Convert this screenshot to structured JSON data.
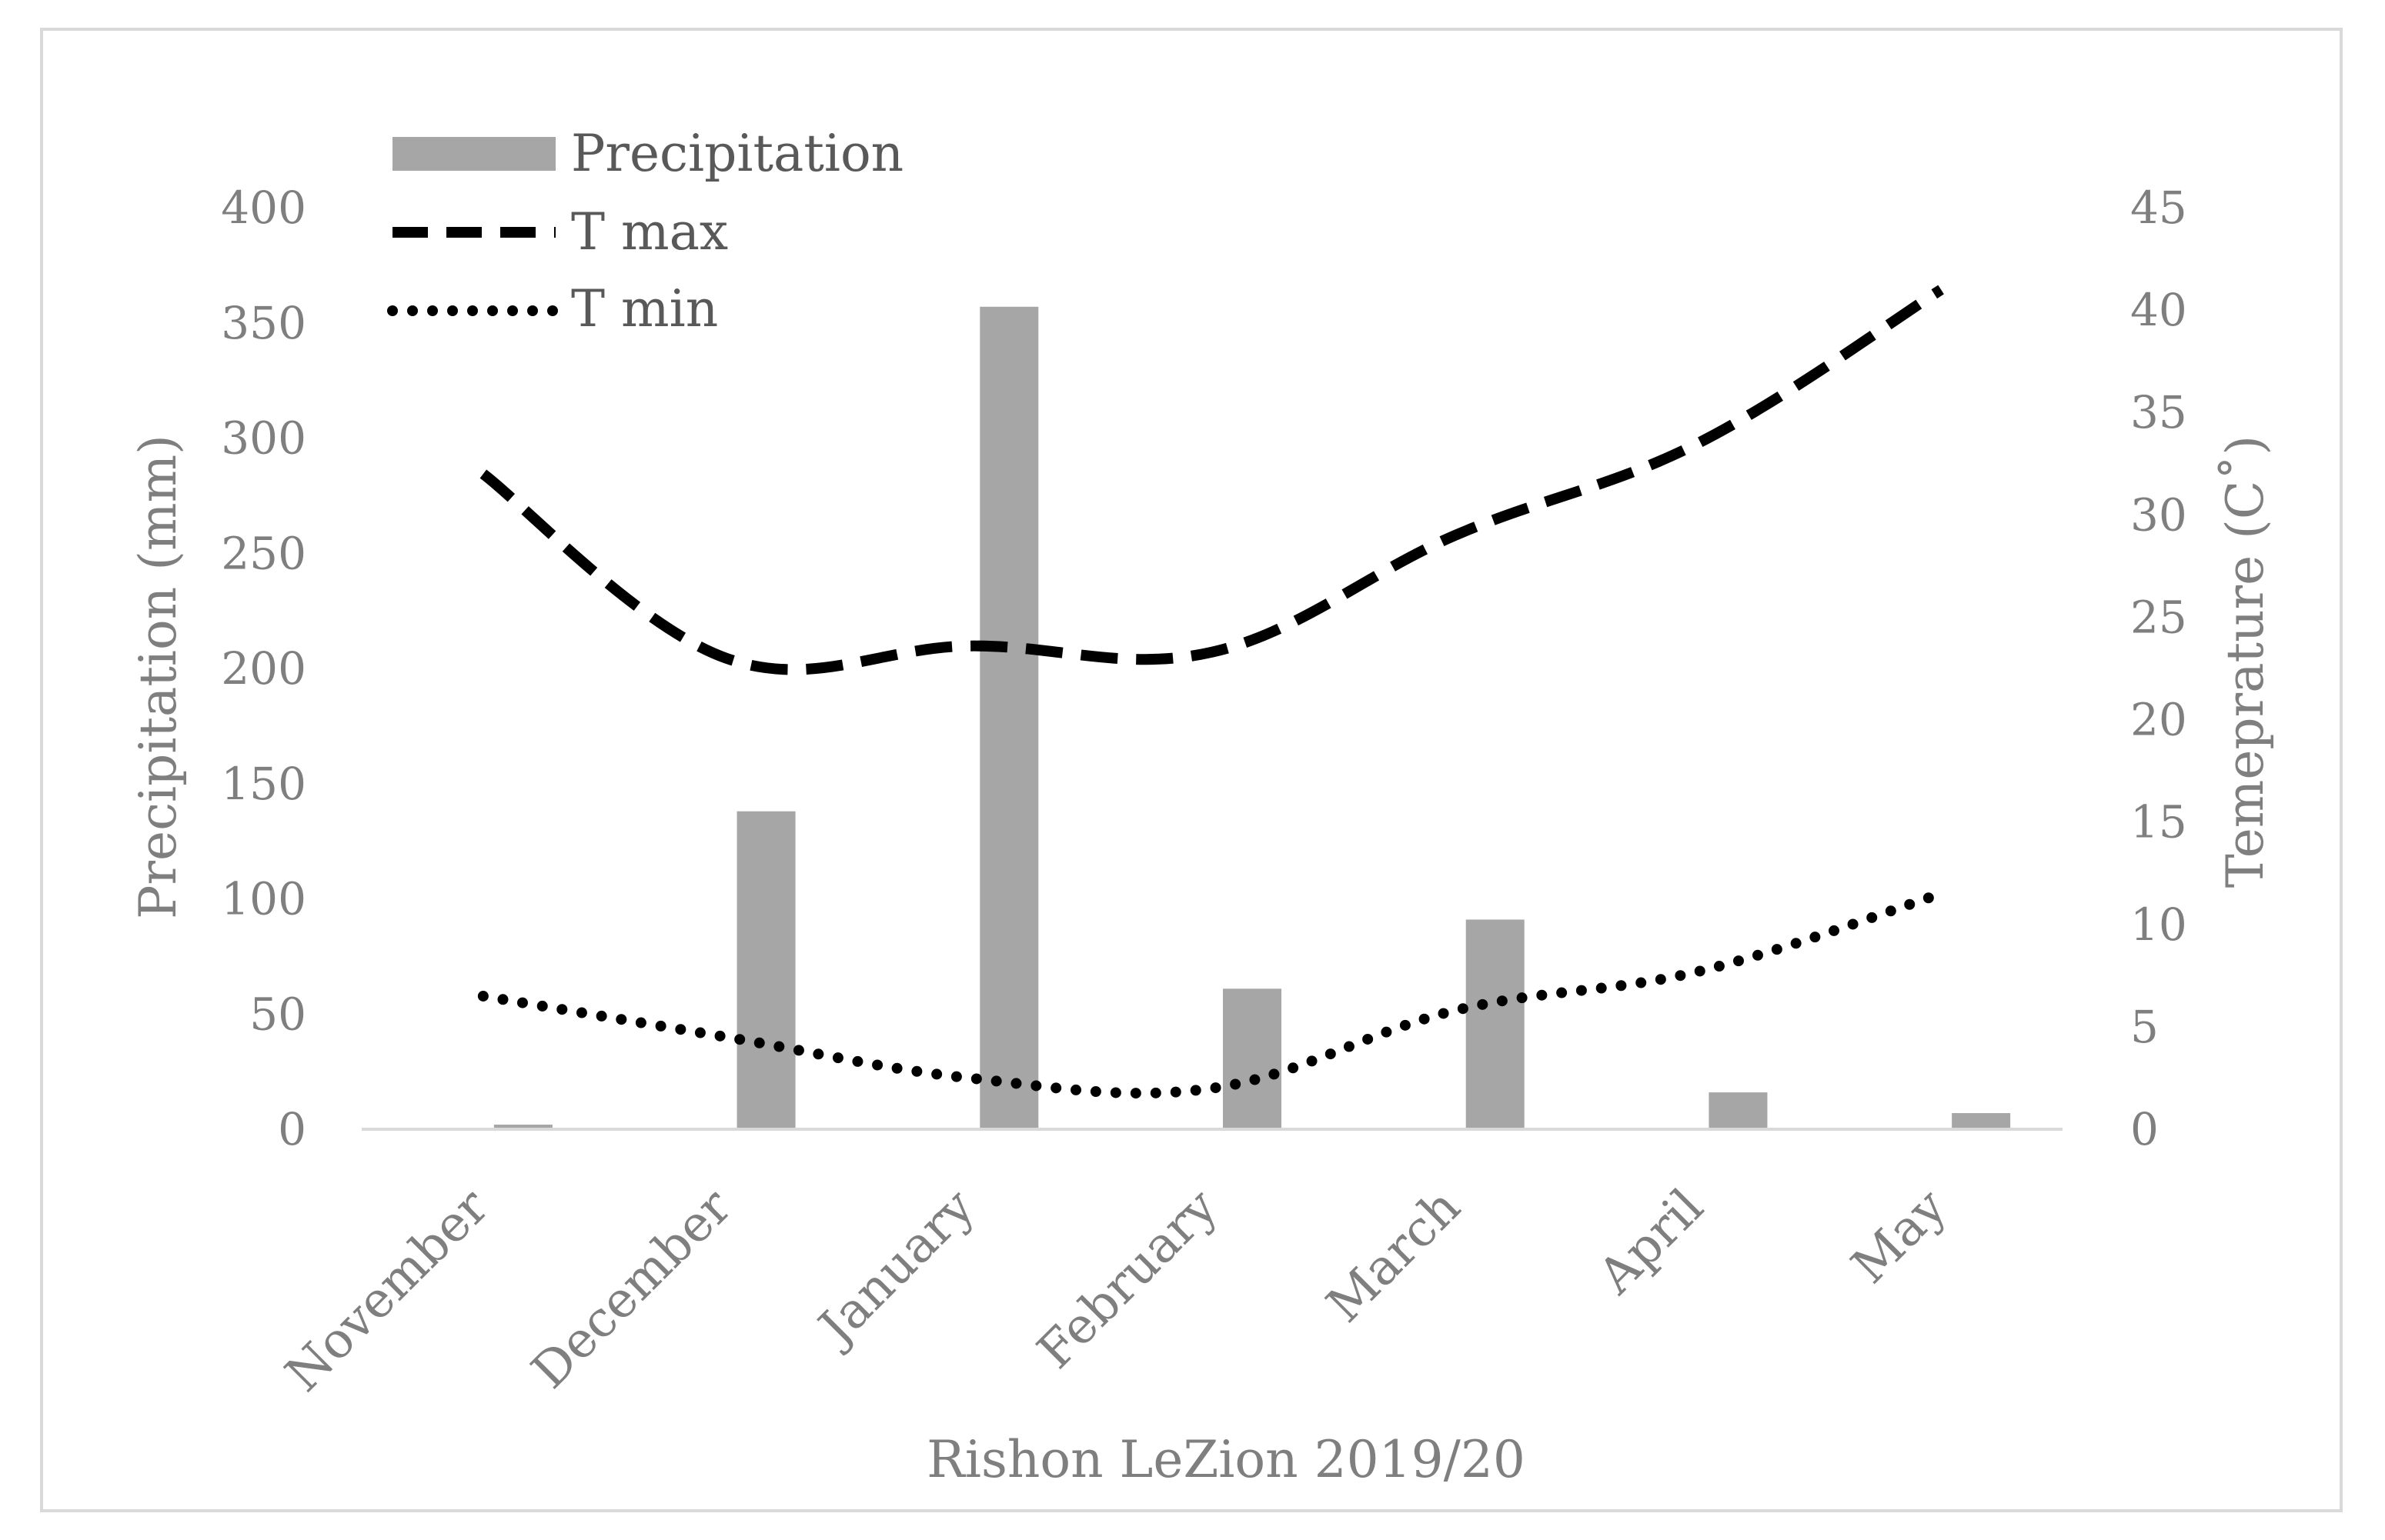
{
  "chart_data": {
    "type": "bar",
    "title": "",
    "xlabel": "Rishon LeZion 2019/20",
    "ylabel": "Precipitation (mm)",
    "y2label": "Temeprature (C˚)",
    "categories": [
      "November",
      "December",
      "January",
      "February",
      "March",
      "April",
      "May"
    ],
    "ylim": [
      0,
      400
    ],
    "y2lim": [
      0,
      45
    ],
    "yticks": [
      "0",
      "50",
      "100",
      "150",
      "200",
      "250",
      "300",
      "350",
      "400"
    ],
    "y2ticks": [
      "0",
      "5",
      "10",
      "15",
      "20",
      "25",
      "30",
      "35",
      "40",
      "45"
    ],
    "grid": false,
    "legend_position": "top-left",
    "series": [
      {
        "name": "Precipitation",
        "type": "bar",
        "axis": "left",
        "color": "#a6a6a6",
        "values": [
          2,
          138,
          357,
          61,
          91,
          16,
          7
        ]
      },
      {
        "name": "T max",
        "type": "line",
        "axis": "right",
        "style": "dashed",
        "color": "#000000",
        "values": [
          32,
          23,
          23.6,
          23.3,
          29,
          33.5,
          41
        ]
      },
      {
        "name": "T min",
        "type": "line",
        "axis": "right",
        "style": "dotted",
        "color": "#000000",
        "values": [
          6.5,
          4.5,
          2.5,
          2,
          5.8,
          7.7,
          11.5
        ]
      }
    ]
  }
}
